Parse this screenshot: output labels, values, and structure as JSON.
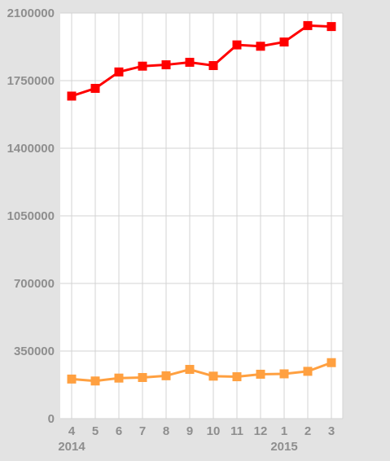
{
  "chart_data": {
    "type": "line",
    "categories": [
      "4",
      "5",
      "6",
      "7",
      "8",
      "9",
      "10",
      "11",
      "12",
      "1",
      "2",
      "3"
    ],
    "year_labels": [
      {
        "category": "4",
        "text": "2014"
      },
      {
        "category": "1",
        "text": "2015"
      }
    ],
    "y_ticks": [
      "0",
      "350000",
      "700000",
      "1050000",
      "1400000",
      "1750000",
      "2100000"
    ],
    "ylim": [
      0,
      2100000
    ],
    "grid": true,
    "series": [
      {
        "color": "#ff0000",
        "values": [
          1670000,
          1710000,
          1795000,
          1825000,
          1832000,
          1845000,
          1828000,
          1935000,
          1928000,
          1950000,
          2035000,
          2030000
        ]
      },
      {
        "color": "#ffa040",
        "values": [
          205000,
          195000,
          210000,
          213000,
          222000,
          255000,
          220000,
          217000,
          230000,
          232000,
          245000,
          290000
        ]
      }
    ]
  }
}
